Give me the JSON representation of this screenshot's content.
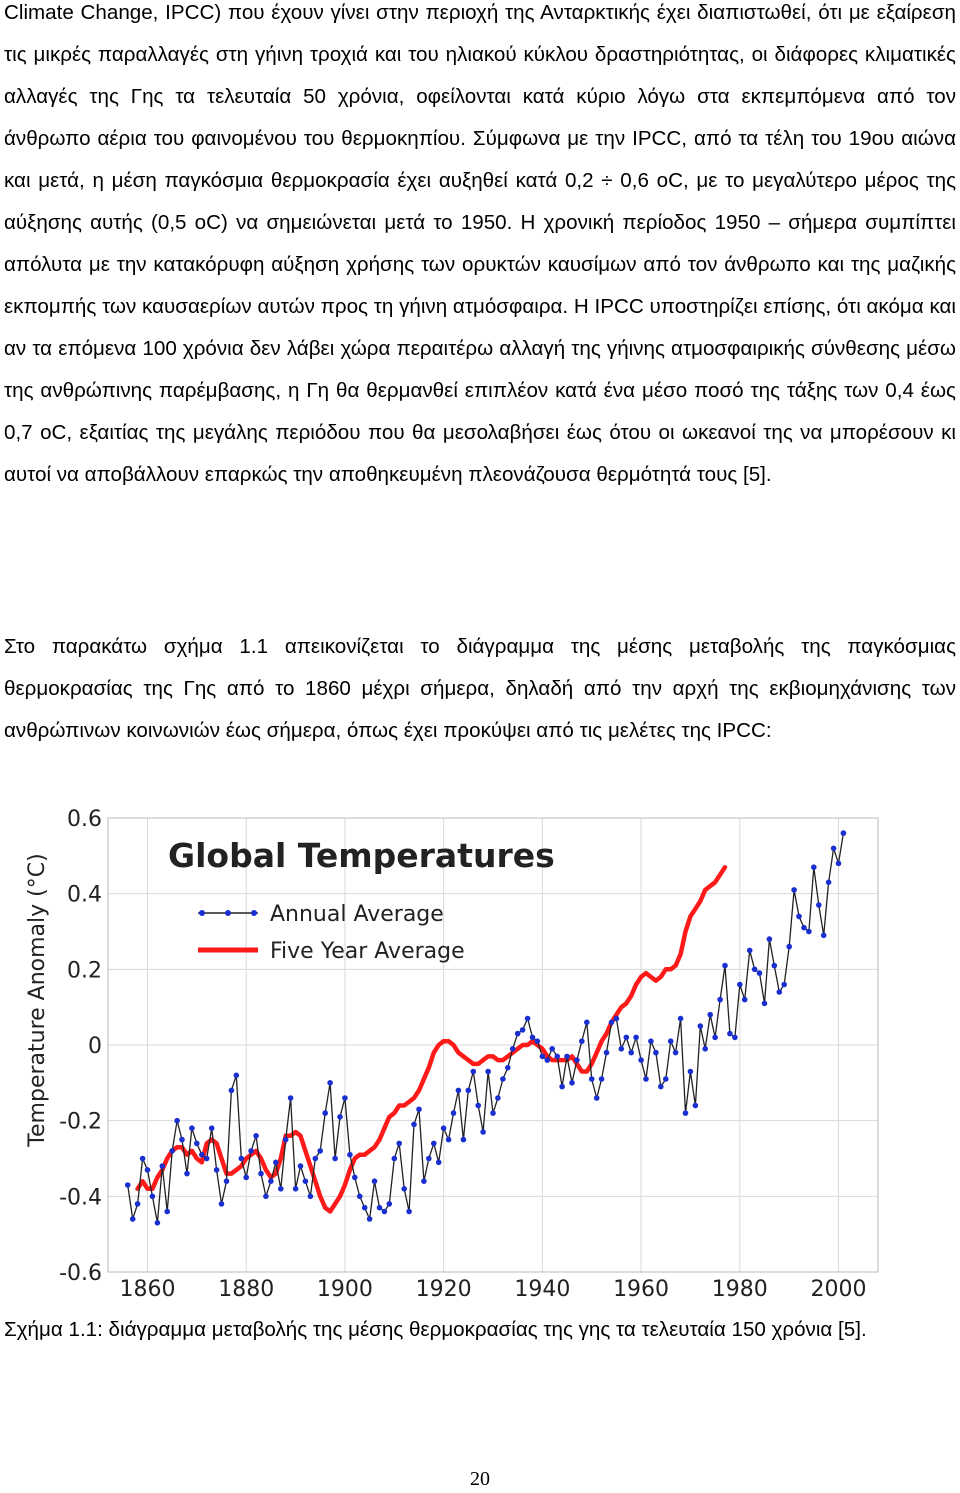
{
  "body": {
    "paragraph_1": "Climate Change, IPCC) που έχουν γίνει στην περιοχή της Ανταρκτικής έχει διαπιστωθεί, ότι με εξαίρεση τις μικρές παραλλαγές στη γήινη τροχιά και του ηλιακού κύκλου δραστηριότητας, οι διάφορες κλιματικές αλλαγές της Γης τα τελευταία 50 χρόνια, οφείλονται κατά κύριο λόγω στα εκπεμπόμενα από τον άνθρωπο αέρια του φαινομένου του θερμοκηπίου. Σύμφωνα με την IPCC, από τα τέλη του 19ου αιώνα και μετά, η μέση παγκόσμια θερμοκρασία έχει αυξηθεί κατά 0,2 ÷ 0,6 oC, με το μεγαλύτερο μέρος της αύξησης αυτής (0,5 oC) να σημειώνεται μετά το 1950. Η χρονική περίοδος 1950 – σήμερα συμπίπτει απόλυτα με την κατακόρυφη αύξηση χρήσης των ορυκτών καυσίμων από τον άνθρωπο και της μαζικής εκπομπής των καυσαερίων αυτών προς τη γήινη ατμόσφαιρα. Η IPCC υποστηρίζει επίσης, ότι ακόμα και αν τα επόμενα 100 χρόνια δεν λάβει χώρα περαιτέρω αλλαγή της γήινης ατμοσφαιρικής σύνθεσης μέσω της ανθρώπινης παρέμβασης, η Γη θα θερμανθεί επιπλέον κατά ένα μέσο ποσό της τάξης των 0,4 έως 0,7 oC, εξαιτίας της μεγάλης περιόδου που θα μεσολαβήσει έως ότου οι ωκεανοί της να μπορέσουν κι αυτοί να αποβάλλουν επαρκώς την αποθηκευμένη πλεονάζουσα θερμότητά τους [5].",
    "paragraph_2": "Στο παρακάτω σχήμα 1.1 απεικονίζεται το διάγραμμα της μέσης μεταβολής της παγκόσμιας θερμοκρασίας της Γης από το 1860 μέχρι σήμερα, δηλαδή από την αρχή της εκβιομηχάνισης των ανθρώπινων κοινωνιών έως σήμερα, όπως έχει προκύψει από τις μελέτες της IPCC:",
    "caption": "Σχήμα 1.1: διάγραμμα μεταβολής της μέσης θερμοκρασίας της γης τα τελευταία 150 χρόνια [5].",
    "page_number": "20"
  },
  "colors": {
    "annual": "#1a2fd0",
    "five_year": "#ff1a1a",
    "line": "#222222"
  },
  "chart_data": {
    "type": "line",
    "title": "Global Temperatures",
    "xlabel": "",
    "ylabel": "Temperature Anomaly (°C)",
    "xlim": [
      1852,
      2008
    ],
    "ylim": [
      -0.6,
      0.6
    ],
    "x_ticks": [
      1860,
      1880,
      1900,
      1920,
      1940,
      1960,
      1980,
      2000
    ],
    "y_ticks": [
      -0.6,
      -0.4,
      -0.2,
      0,
      0.2,
      0.4,
      0.6
    ],
    "y_tick_labels": [
      "-0.6",
      "-0.4",
      "-0.2",
      "0",
      "0.2",
      "0.4",
      "0.6"
    ],
    "legend": [
      "Annual Average",
      "Five Year Average"
    ],
    "legend_position": "top-left",
    "series": [
      {
        "name": "Annual Average",
        "x_start": 1856,
        "values": [
          -0.37,
          -0.46,
          -0.42,
          -0.3,
          -0.33,
          -0.4,
          -0.47,
          -0.32,
          -0.44,
          -0.28,
          -0.2,
          -0.25,
          -0.34,
          -0.22,
          -0.26,
          -0.29,
          -0.3,
          -0.22,
          -0.33,
          -0.42,
          -0.36,
          -0.12,
          -0.08,
          -0.3,
          -0.35,
          -0.28,
          -0.24,
          -0.34,
          -0.4,
          -0.36,
          -0.31,
          -0.38,
          -0.25,
          -0.14,
          -0.38,
          -0.32,
          -0.36,
          -0.4,
          -0.3,
          -0.28,
          -0.18,
          -0.1,
          -0.3,
          -0.19,
          -0.14,
          -0.29,
          -0.35,
          -0.4,
          -0.43,
          -0.46,
          -0.36,
          -0.43,
          -0.44,
          -0.42,
          -0.3,
          -0.26,
          -0.38,
          -0.44,
          -0.21,
          -0.17,
          -0.36,
          -0.3,
          -0.26,
          -0.31,
          -0.22,
          -0.25,
          -0.18,
          -0.12,
          -0.25,
          -0.12,
          -0.07,
          -0.16,
          -0.23,
          -0.07,
          -0.18,
          -0.14,
          -0.09,
          -0.06,
          -0.01,
          0.03,
          0.04,
          0.07,
          0.02,
          0.01,
          -0.03,
          -0.04,
          -0.01,
          -0.03,
          -0.11,
          -0.03,
          -0.1,
          -0.04,
          0.01,
          0.06,
          -0.09,
          -0.14,
          -0.09,
          -0.02,
          0.06,
          0.07,
          -0.01,
          0.02,
          -0.02,
          0.02,
          -0.04,
          -0.09,
          0.01,
          -0.02,
          -0.11,
          -0.09,
          0.01,
          -0.02,
          0.07,
          -0.18,
          -0.07,
          -0.16,
          0.05,
          -0.01,
          0.08,
          0.02,
          0.12,
          0.21,
          0.03,
          0.02,
          0.16,
          0.12,
          0.25,
          0.2,
          0.19,
          0.11,
          0.28,
          0.21,
          0.14,
          0.16,
          0.26,
          0.41,
          0.34,
          0.31,
          0.3,
          0.47,
          0.37,
          0.29,
          0.43,
          0.52,
          0.48,
          0.56
        ]
      },
      {
        "name": "Five Year Average",
        "x_start": 1858,
        "values": [
          -0.38,
          -0.36,
          -0.38,
          -0.38,
          -0.35,
          -0.33,
          -0.3,
          -0.28,
          -0.27,
          -0.27,
          -0.29,
          -0.28,
          -0.3,
          -0.31,
          -0.26,
          -0.25,
          -0.26,
          -0.3,
          -0.34,
          -0.34,
          -0.33,
          -0.32,
          -0.3,
          -0.29,
          -0.28,
          -0.3,
          -0.33,
          -0.35,
          -0.34,
          -0.3,
          -0.24,
          -0.24,
          -0.23,
          -0.24,
          -0.28,
          -0.32,
          -0.36,
          -0.4,
          -0.43,
          -0.44,
          -0.42,
          -0.4,
          -0.37,
          -0.33,
          -0.3,
          -0.29,
          -0.29,
          -0.28,
          -0.27,
          -0.25,
          -0.22,
          -0.19,
          -0.18,
          -0.16,
          -0.16,
          -0.15,
          -0.14,
          -0.12,
          -0.09,
          -0.06,
          -0.02,
          0.0,
          0.01,
          0.01,
          0.0,
          -0.02,
          -0.03,
          -0.04,
          -0.05,
          -0.05,
          -0.04,
          -0.03,
          -0.03,
          -0.04,
          -0.04,
          -0.03,
          -0.02,
          -0.01,
          0.0,
          0.0,
          0.01,
          0.0,
          -0.01,
          -0.03,
          -0.04,
          -0.04,
          -0.04,
          -0.04,
          -0.03,
          -0.05,
          -0.07,
          -0.07,
          -0.05,
          -0.02,
          0.01,
          0.03,
          0.06,
          0.08,
          0.1,
          0.11,
          0.13,
          0.16,
          0.18,
          0.19,
          0.18,
          0.17,
          0.18,
          0.2,
          0.2,
          0.21,
          0.24,
          0.3,
          0.34,
          0.36,
          0.38,
          0.41,
          0.42,
          0.43,
          0.45,
          0.47
        ]
      }
    ]
  }
}
